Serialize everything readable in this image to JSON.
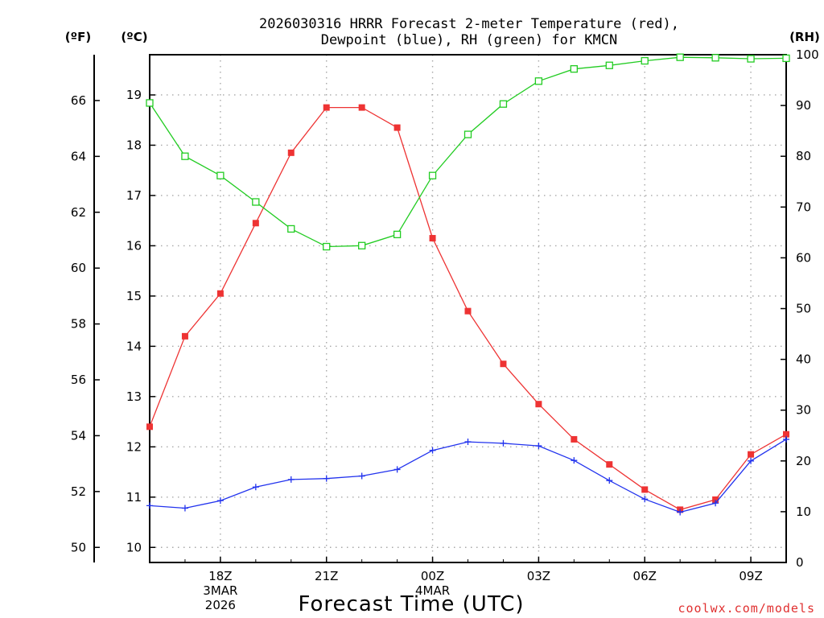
{
  "chart_data": {
    "type": "line",
    "title": "2026030316 HRRR Forecast 2-meter Temperature (red),",
    "subtitle": "Dewpoint (blue), RH (green) for KMCN",
    "xlabel": "Forecast Time (UTC)",
    "credit": "coolwx.com/models",
    "units": {
      "fahrenheit": "(ºF)",
      "celsius": "(ºC)",
      "rh": "(RH)"
    },
    "x_hours": [
      16,
      17,
      18,
      19,
      20,
      21,
      22,
      23,
      24,
      25,
      26,
      27,
      28,
      29,
      30,
      31,
      32,
      33,
      34
    ],
    "xlim": [
      16,
      34
    ],
    "ylim_c": [
      9.7,
      19.8
    ],
    "ylim_rh": [
      0,
      100
    ],
    "ylim_f": [
      49.46,
      67.64
    ],
    "x_tick_labels": [
      {
        "hour": 18,
        "lines": [
          "18Z",
          "3MAR",
          "2026"
        ]
      },
      {
        "hour": 21,
        "lines": [
          "21Z"
        ]
      },
      {
        "hour": 24,
        "lines": [
          "00Z",
          "4MAR"
        ]
      },
      {
        "hour": 27,
        "lines": [
          "03Z"
        ]
      },
      {
        "hour": 30,
        "lines": [
          "06Z"
        ]
      },
      {
        "hour": 33,
        "lines": [
          "09Z"
        ]
      }
    ],
    "c_ticks": [
      10,
      11,
      12,
      13,
      14,
      15,
      16,
      17,
      18,
      19
    ],
    "f_ticks": [
      50,
      52,
      54,
      56,
      58,
      60,
      62,
      64,
      66
    ],
    "rh_ticks": [
      0,
      10,
      20,
      30,
      40,
      50,
      60,
      70,
      80,
      90,
      100
    ],
    "series": [
      {
        "name": "Temperature",
        "axis": "c",
        "color": "#ee3333",
        "marker": "filled-square",
        "values": [
          12.4,
          14.2,
          15.05,
          16.45,
          17.85,
          18.75,
          18.75,
          18.35,
          16.15,
          14.7,
          13.65,
          12.85,
          12.15,
          11.65,
          11.15,
          10.75,
          10.95,
          11.85,
          12.25
        ]
      },
      {
        "name": "Dewpoint",
        "axis": "c",
        "color": "#2233ee",
        "marker": "plus",
        "values": [
          10.83,
          10.78,
          10.93,
          11.2,
          11.35,
          11.37,
          11.42,
          11.55,
          11.93,
          12.1,
          12.07,
          12.02,
          11.73,
          11.33,
          10.96,
          10.7,
          10.88,
          11.72,
          12.15
        ]
      },
      {
        "name": "RH",
        "axis": "rh",
        "color": "#22cc22",
        "marker": "open-square",
        "values": [
          90.5,
          80,
          76.2,
          71,
          65.7,
          62.2,
          62.4,
          64.6,
          76.2,
          84.3,
          90.3,
          94.8,
          97.2,
          97.9,
          98.8,
          99.5,
          99.4,
          99.2,
          99.3
        ]
      }
    ]
  }
}
